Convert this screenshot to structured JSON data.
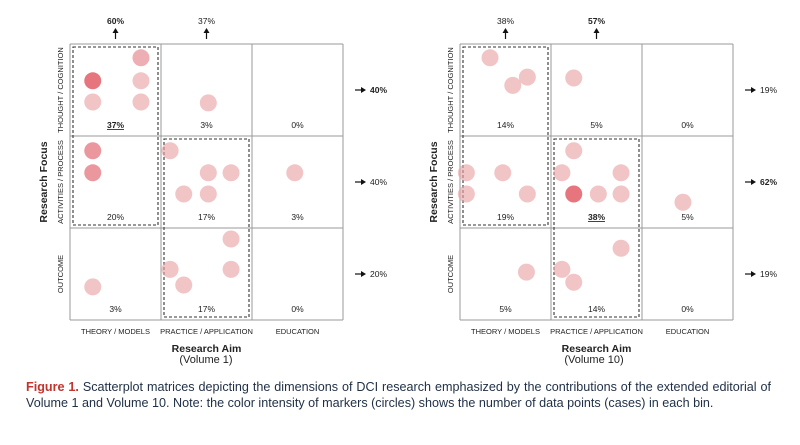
{
  "chart_data": [
    {
      "type": "scatter",
      "title": "(Volume 1)",
      "xlabel": "Research Aim",
      "ylabel": "Research Focus",
      "x_categories": [
        "THEORY / MODELS",
        "PRACTICE / APPLICATION",
        "EDUCATION"
      ],
      "y_categories": [
        "THOUGHT / COGNITION",
        "ACTIVITIES / PROCESS",
        "OUTCOME"
      ],
      "cells": [
        {
          "row": 0,
          "col": 0,
          "percent": "37%",
          "bold": true,
          "points": [
            {
              "x": 0.78,
              "y": 0.15,
              "intensity": 0.5
            },
            {
              "x": 0.25,
              "y": 0.4,
              "intensity": 0.85
            },
            {
              "x": 0.78,
              "y": 0.4,
              "intensity": 0.35
            },
            {
              "x": 0.25,
              "y": 0.63,
              "intensity": 0.35
            },
            {
              "x": 0.78,
              "y": 0.63,
              "intensity": 0.35
            }
          ]
        },
        {
          "row": 0,
          "col": 1,
          "percent": "3%",
          "bold": false,
          "points": [
            {
              "x": 0.52,
              "y": 0.64,
              "intensity": 0.35
            }
          ]
        },
        {
          "row": 0,
          "col": 2,
          "percent": "0%",
          "bold": false,
          "points": []
        },
        {
          "row": 1,
          "col": 0,
          "percent": "20%",
          "bold": false,
          "points": [
            {
              "x": 0.25,
              "y": 0.16,
              "intensity": 0.65
            },
            {
              "x": 0.25,
              "y": 0.4,
              "intensity": 0.65
            }
          ]
        },
        {
          "row": 1,
          "col": 1,
          "percent": "17%",
          "bold": false,
          "points": [
            {
              "x": 0.1,
              "y": 0.16,
              "intensity": 0.35
            },
            {
              "x": 0.52,
              "y": 0.4,
              "intensity": 0.35
            },
            {
              "x": 0.77,
              "y": 0.4,
              "intensity": 0.35
            },
            {
              "x": 0.25,
              "y": 0.63,
              "intensity": 0.35
            },
            {
              "x": 0.52,
              "y": 0.63,
              "intensity": 0.35
            }
          ]
        },
        {
          "row": 1,
          "col": 2,
          "percent": "3%",
          "bold": false,
          "points": [
            {
              "x": 0.47,
              "y": 0.4,
              "intensity": 0.35
            }
          ]
        },
        {
          "row": 2,
          "col": 0,
          "percent": "3%",
          "bold": false,
          "points": [
            {
              "x": 0.25,
              "y": 0.64,
              "intensity": 0.35
            }
          ]
        },
        {
          "row": 2,
          "col": 1,
          "percent": "17%",
          "bold": false,
          "points": [
            {
              "x": 0.77,
              "y": 0.12,
              "intensity": 0.35
            },
            {
              "x": 0.1,
              "y": 0.45,
              "intensity": 0.35
            },
            {
              "x": 0.77,
              "y": 0.45,
              "intensity": 0.35
            },
            {
              "x": 0.25,
              "y": 0.62,
              "intensity": 0.35
            }
          ]
        },
        {
          "row": 2,
          "col": 2,
          "percent": "0%",
          "bold": false,
          "points": []
        }
      ],
      "col_totals": [
        {
          "label": "60%",
          "bold": true
        },
        {
          "label": "37%",
          "bold": false
        }
      ],
      "row_totals": [
        {
          "label": "40%",
          "bold": true
        },
        {
          "label": "40%",
          "bold": false
        },
        {
          "label": "20%",
          "bold": false
        }
      ],
      "highlight_cells": [
        [
          0,
          0
        ],
        [
          1,
          0
        ],
        [
          1,
          1
        ],
        [
          2,
          1
        ]
      ]
    },
    {
      "type": "scatter",
      "title": "(Volume 10)",
      "xlabel": "Research Aim",
      "ylabel": "Research Focus",
      "x_categories": [
        "THEORY / MODELS",
        "PRACTICE / APPLICATION",
        "EDUCATION"
      ],
      "y_categories": [
        "THOUGHT / COGNITION",
        "ACTIVITIES / PROCESS",
        "OUTCOME"
      ],
      "cells": [
        {
          "row": 0,
          "col": 0,
          "percent": "14%",
          "bold": false,
          "points": [
            {
              "x": 0.33,
              "y": 0.15,
              "intensity": 0.35
            },
            {
              "x": 0.74,
              "y": 0.36,
              "intensity": 0.35
            },
            {
              "x": 0.58,
              "y": 0.45,
              "intensity": 0.35
            }
          ]
        },
        {
          "row": 0,
          "col": 1,
          "percent": "5%",
          "bold": false,
          "points": [
            {
              "x": 0.25,
              "y": 0.37,
              "intensity": 0.35
            }
          ]
        },
        {
          "row": 0,
          "col": 2,
          "percent": "0%",
          "bold": false,
          "points": []
        },
        {
          "row": 1,
          "col": 0,
          "percent": "19%",
          "bold": false,
          "points": [
            {
              "x": 0.07,
              "y": 0.4,
              "intensity": 0.35
            },
            {
              "x": 0.47,
              "y": 0.4,
              "intensity": 0.35
            },
            {
              "x": 0.07,
              "y": 0.63,
              "intensity": 0.35
            },
            {
              "x": 0.74,
              "y": 0.63,
              "intensity": 0.35
            }
          ]
        },
        {
          "row": 1,
          "col": 1,
          "percent": "38%",
          "bold": true,
          "points": [
            {
              "x": 0.25,
              "y": 0.16,
              "intensity": 0.35
            },
            {
              "x": 0.12,
              "y": 0.4,
              "intensity": 0.35
            },
            {
              "x": 0.77,
              "y": 0.4,
              "intensity": 0.35
            },
            {
              "x": 0.25,
              "y": 0.63,
              "intensity": 0.85
            },
            {
              "x": 0.52,
              "y": 0.63,
              "intensity": 0.35
            },
            {
              "x": 0.77,
              "y": 0.63,
              "intensity": 0.35
            }
          ]
        },
        {
          "row": 1,
          "col": 2,
          "percent": "5%",
          "bold": false,
          "points": [
            {
              "x": 0.45,
              "y": 0.72,
              "intensity": 0.35
            }
          ]
        },
        {
          "row": 2,
          "col": 0,
          "percent": "5%",
          "bold": false,
          "points": [
            {
              "x": 0.73,
              "y": 0.48,
              "intensity": 0.35
            }
          ]
        },
        {
          "row": 2,
          "col": 1,
          "percent": "14%",
          "bold": false,
          "points": [
            {
              "x": 0.77,
              "y": 0.22,
              "intensity": 0.35
            },
            {
              "x": 0.12,
              "y": 0.45,
              "intensity": 0.35
            },
            {
              "x": 0.25,
              "y": 0.59,
              "intensity": 0.35
            }
          ]
        },
        {
          "row": 2,
          "col": 2,
          "percent": "0%",
          "bold": false,
          "points": []
        }
      ],
      "col_totals": [
        {
          "label": "38%",
          "bold": false
        },
        {
          "label": "57%",
          "bold": true
        }
      ],
      "row_totals": [
        {
          "label": "19%",
          "bold": false
        },
        {
          "label": "62%",
          "bold": true
        },
        {
          "label": "19%",
          "bold": false
        }
      ],
      "highlight_cells": [
        [
          0,
          0
        ],
        [
          1,
          0
        ],
        [
          1,
          1
        ],
        [
          2,
          1
        ]
      ]
    }
  ],
  "colors": {
    "marker_base": "#e8a0a4",
    "marker_strong": "#e2616a",
    "grid": "#9a9a9a",
    "caption_text": "#1f2f45",
    "figure_label": "#c2342c"
  },
  "caption": {
    "label": "Figure 1.",
    "text": " Scatterplot matrices depicting the dimensions of DCI research emphasized by the contributions of the extended editorial of Volume 1 and Volume 10. Note: the color intensity of markers (circles) shows the number of data points (cases) in each bin."
  }
}
